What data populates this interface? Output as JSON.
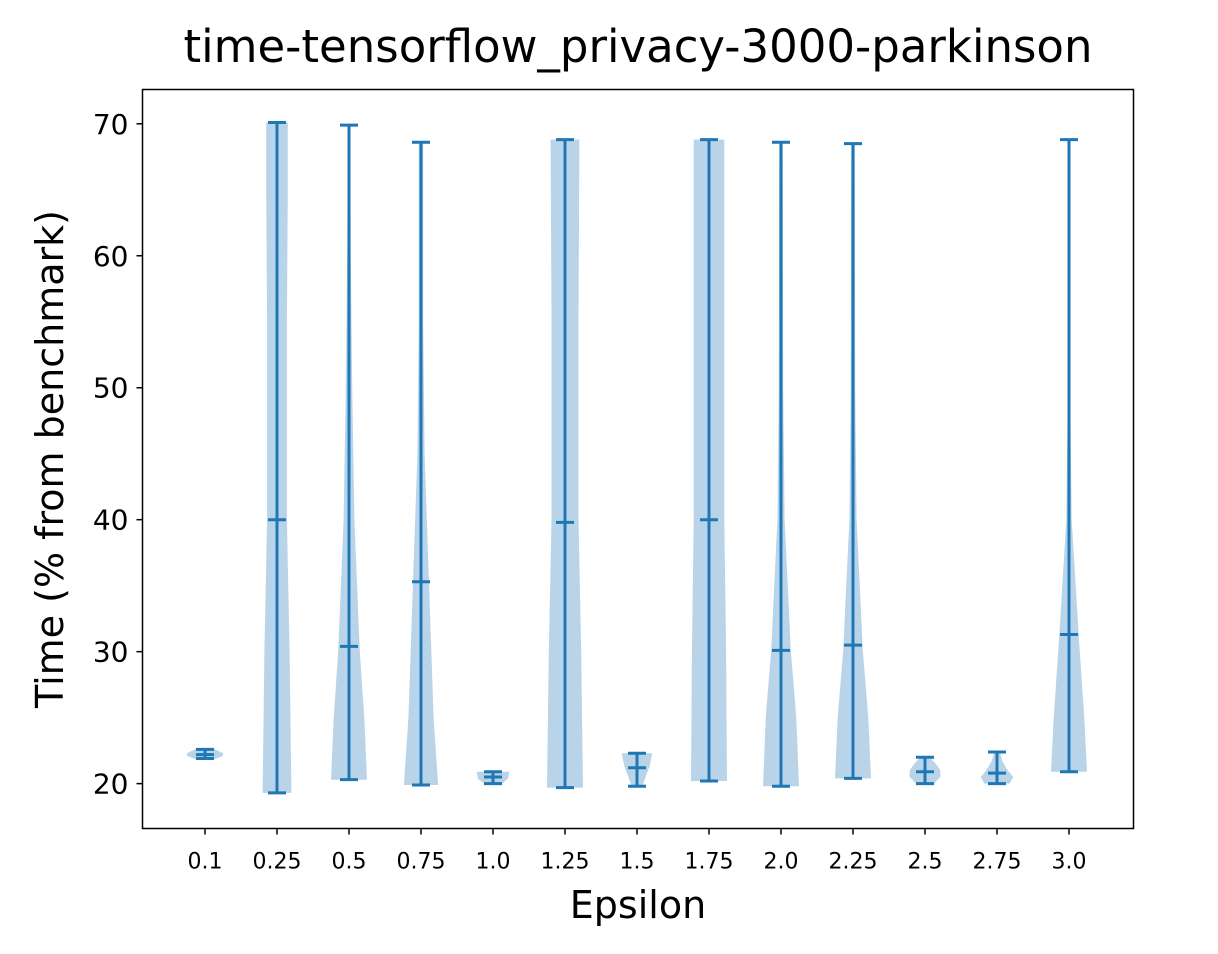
{
  "chart_data": {
    "type": "violin",
    "title": "time-tensorflow_privacy-3000-parkinson",
    "xlabel": "Epsilon",
    "ylabel": "Time (% from benchmark)",
    "ylim": [
      16.6,
      72.6
    ],
    "yticks": [
      20,
      30,
      40,
      50,
      60,
      70
    ],
    "categories": [
      "0.1",
      "0.25",
      "0.5",
      "0.75",
      "1.0",
      "1.25",
      "1.5",
      "1.75",
      "2.0",
      "2.25",
      "2.5",
      "2.75",
      "3.0"
    ],
    "grid": false,
    "violins": [
      {
        "label": "0.1",
        "min": 21.9,
        "mean": 22.2,
        "max": 22.6,
        "profile": [
          [
            21.9,
            0.6
          ],
          [
            22.1,
            1.0
          ],
          [
            22.3,
            1.0
          ],
          [
            22.6,
            0.55
          ]
        ]
      },
      {
        "label": "0.25",
        "min": 19.3,
        "mean": 40.0,
        "max": 70.1,
        "profile": [
          [
            19.3,
            0.8
          ],
          [
            30,
            0.7
          ],
          [
            40,
            0.55
          ],
          [
            55,
            0.55
          ],
          [
            65,
            0.6
          ],
          [
            70.1,
            0.6
          ]
        ]
      },
      {
        "label": "0.5",
        "min": 20.3,
        "mean": 30.4,
        "max": 69.9,
        "profile": [
          [
            20.3,
            1.0
          ],
          [
            25,
            0.85
          ],
          [
            30,
            0.6
          ],
          [
            40,
            0.3
          ],
          [
            50,
            0.18
          ],
          [
            60,
            0.1
          ],
          [
            69.9,
            0.06
          ]
        ]
      },
      {
        "label": "0.75",
        "min": 19.9,
        "mean": 35.3,
        "max": 68.6,
        "profile": [
          [
            19.9,
            0.95
          ],
          [
            25,
            0.7
          ],
          [
            35,
            0.45
          ],
          [
            45,
            0.2
          ],
          [
            55,
            0.12
          ],
          [
            68.6,
            0.12
          ]
        ]
      },
      {
        "label": "1.0",
        "min": 20.0,
        "mean": 20.5,
        "max": 20.9,
        "profile": [
          [
            20.0,
            0.5
          ],
          [
            20.4,
            0.85
          ],
          [
            20.9,
            0.9
          ]
        ]
      },
      {
        "label": "1.25",
        "min": 19.7,
        "mean": 39.8,
        "max": 68.8,
        "profile": [
          [
            19.7,
            1.0
          ],
          [
            30,
            0.9
          ],
          [
            40,
            0.75
          ],
          [
            55,
            0.75
          ],
          [
            68.8,
            0.8
          ]
        ]
      },
      {
        "label": "1.5",
        "min": 19.8,
        "mean": 21.2,
        "max": 22.3,
        "profile": [
          [
            19.8,
            0.3
          ],
          [
            20.6,
            0.5
          ],
          [
            21.3,
            0.7
          ],
          [
            22.3,
            0.85
          ]
        ]
      },
      {
        "label": "1.75",
        "min": 20.2,
        "mean": 40.0,
        "max": 68.8,
        "profile": [
          [
            20.2,
            1.0
          ],
          [
            30,
            0.95
          ],
          [
            40,
            0.85
          ],
          [
            55,
            0.85
          ],
          [
            68.8,
            0.85
          ]
        ]
      },
      {
        "label": "2.0",
        "min": 19.8,
        "mean": 30.1,
        "max": 68.6,
        "profile": [
          [
            19.8,
            1.0
          ],
          [
            25,
            0.85
          ],
          [
            30,
            0.55
          ],
          [
            40,
            0.2
          ],
          [
            50,
            0.12
          ],
          [
            68.6,
            0.1
          ]
        ]
      },
      {
        "label": "2.25",
        "min": 20.4,
        "mean": 30.5,
        "max": 68.5,
        "profile": [
          [
            20.4,
            1.0
          ],
          [
            25,
            0.85
          ],
          [
            30,
            0.55
          ],
          [
            40,
            0.2
          ],
          [
            50,
            0.12
          ],
          [
            68.5,
            0.1
          ]
        ]
      },
      {
        "label": "2.5",
        "min": 20.0,
        "mean": 20.9,
        "max": 22.0,
        "profile": [
          [
            20.0,
            0.5
          ],
          [
            20.5,
            0.85
          ],
          [
            21.0,
            0.85
          ],
          [
            21.5,
            0.6
          ],
          [
            22.0,
            0.25
          ]
        ]
      },
      {
        "label": "2.75",
        "min": 20.0,
        "mean": 20.8,
        "max": 22.4,
        "profile": [
          [
            20.0,
            0.7
          ],
          [
            20.5,
            0.9
          ],
          [
            21.0,
            0.6
          ],
          [
            21.7,
            0.3
          ],
          [
            22.4,
            0.15
          ]
        ]
      },
      {
        "label": "3.0",
        "min": 20.9,
        "mean": 31.3,
        "max": 68.8,
        "profile": [
          [
            20.9,
            1.0
          ],
          [
            25,
            0.85
          ],
          [
            31,
            0.55
          ],
          [
            40,
            0.15
          ],
          [
            50,
            0.06
          ],
          [
            68.8,
            0.06
          ]
        ]
      }
    ],
    "colors": {
      "line": "#1f77b4",
      "fill": "#b9d4e8"
    }
  }
}
